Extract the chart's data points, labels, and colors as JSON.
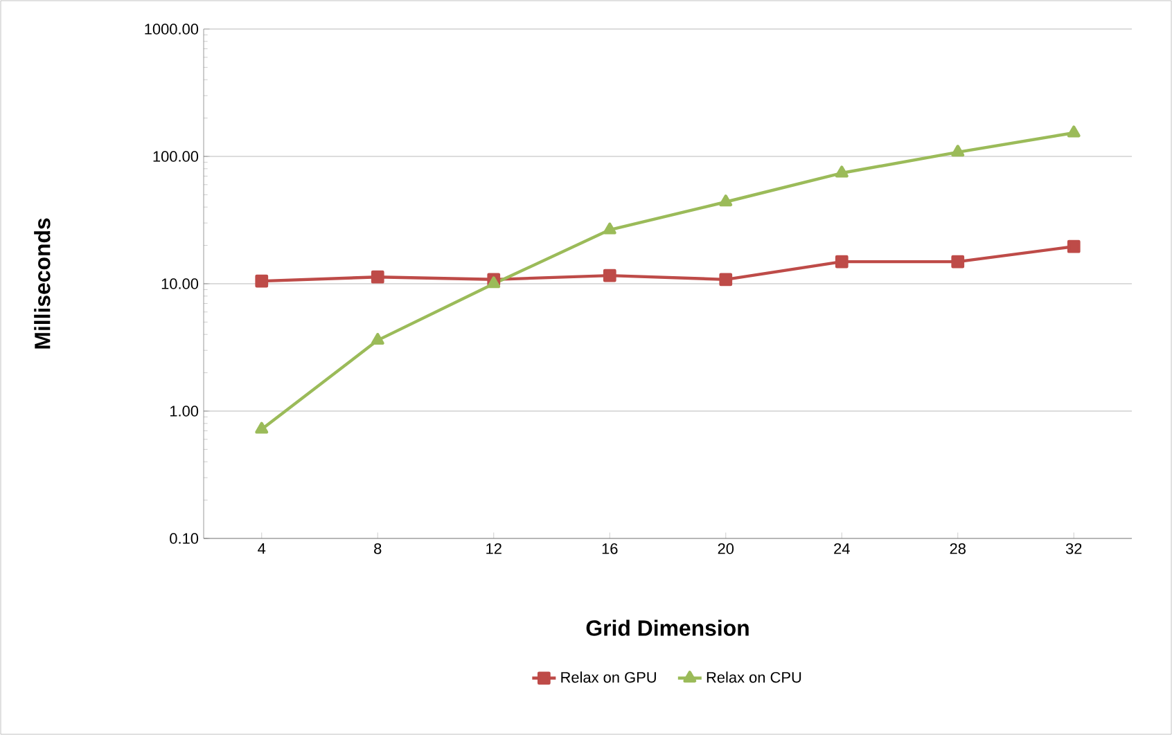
{
  "chart_data": {
    "type": "line",
    "xlabel": "Grid Dimension",
    "ylabel": "Milliseconds",
    "log": "y",
    "grid": "y",
    "legend": "bottom",
    "ylim": [
      0.1,
      1000
    ],
    "yticks": [
      {
        "value": 0.1,
        "label": "0.10"
      },
      {
        "value": 1,
        "label": "1.00"
      },
      {
        "value": 10,
        "label": "10.00"
      },
      {
        "value": 100,
        "label": "100.00"
      },
      {
        "value": 1000,
        "label": "1000.00"
      }
    ],
    "categories": [
      "4",
      "8",
      "12",
      "16",
      "20",
      "24",
      "28",
      "32"
    ],
    "series": [
      {
        "name": "Relax on GPU",
        "color": "#be4b48",
        "marker": "square",
        "values": [
          10.5,
          11.3,
          10.8,
          11.6,
          10.8,
          14.9,
          14.9,
          19.6
        ]
      },
      {
        "name": "Relax on CPU",
        "color": "#9bbb59",
        "marker": "triangle",
        "values": [
          0.72,
          3.6,
          10,
          26.5,
          43.9,
          74,
          108,
          153
        ]
      }
    ]
  }
}
